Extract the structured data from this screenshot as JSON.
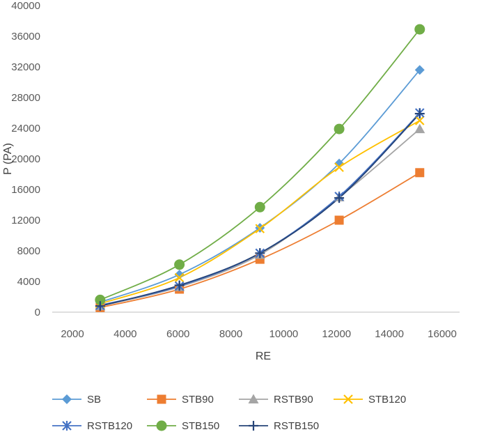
{
  "chart_data": {
    "type": "line",
    "title": "",
    "xlabel": "RE",
    "ylabel": "P (PA)",
    "xlim": [
      2000,
      16000
    ],
    "ylim": [
      0,
      40000
    ],
    "x_ticks": [
      "2000",
      "4000",
      "6000",
      "8000",
      "10000",
      "12000",
      "14000",
      "16000"
    ],
    "y_ticks": [
      "0",
      "4000",
      "8000",
      "12000",
      "16000",
      "20000",
      "24000",
      "28000",
      "32000",
      "36000",
      "40000"
    ],
    "grid": false,
    "smooth": true,
    "legend_position": "bottom",
    "x": [
      3050,
      6050,
      9100,
      12100,
      15150
    ],
    "series": [
      {
        "name": "SB",
        "color": "#5b9bd5",
        "marker": "diamond",
        "values": [
          1300,
          4900,
          11000,
          19400,
          31600
        ]
      },
      {
        "name": "STB90",
        "color": "#ed7d31",
        "marker": "square",
        "values": [
          600,
          3000,
          6900,
          12000,
          18200
        ]
      },
      {
        "name": "RSTB90",
        "color": "#a5a5a5",
        "marker": "triangle",
        "values": [
          800,
          3300,
          7500,
          15000,
          23900
        ]
      },
      {
        "name": "STB120",
        "color": "#ffc000",
        "marker": "x",
        "values": [
          1100,
          4500,
          10900,
          18900,
          25000
        ]
      },
      {
        "name": "RSTB120",
        "color": "#4472c4",
        "marker": "asterisk",
        "values": [
          900,
          3400,
          7700,
          15100,
          26000
        ]
      },
      {
        "name": "STB150",
        "color": "#70ad47",
        "marker": "circle",
        "values": [
          1600,
          6200,
          13700,
          23900,
          36900
        ]
      },
      {
        "name": "RSTB150",
        "color": "#264478",
        "marker": "plus",
        "values": [
          800,
          3500,
          7700,
          14900,
          25900
        ]
      }
    ]
  }
}
